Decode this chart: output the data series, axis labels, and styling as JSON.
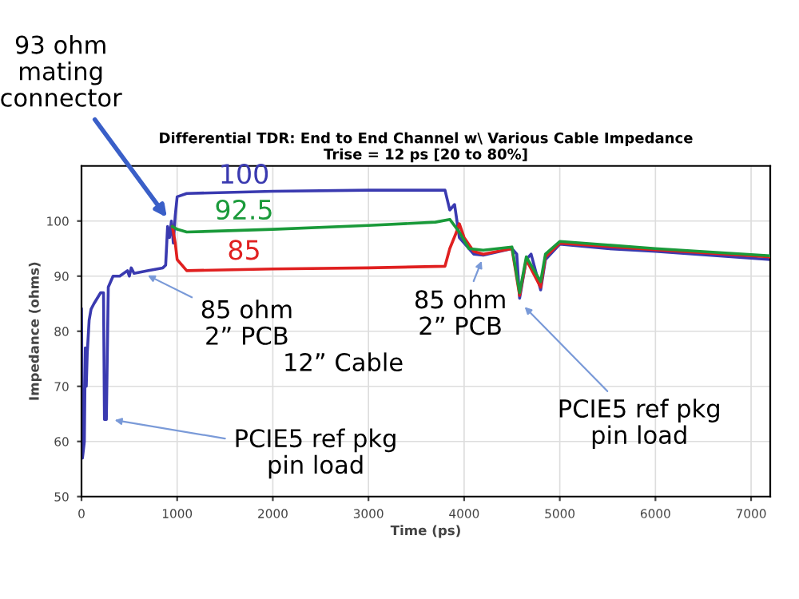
{
  "chart_data": {
    "type": "line",
    "title": "Differential TDR: End to End Channel w\\ Various Cable Impedance",
    "subtitle": "Trise = 12 ps [20 to 80%]",
    "xlabel": "Time (ps)",
    "ylabel": "Impedance (ohms)",
    "xlim": [
      0,
      7200
    ],
    "ylim": [
      50,
      110
    ],
    "xticks": [
      0,
      1000,
      2000,
      3000,
      4000,
      5000,
      6000,
      7000
    ],
    "yticks": [
      50,
      60,
      70,
      80,
      90,
      100
    ],
    "grid": true,
    "legend": false,
    "marker": "none",
    "line_style": "solid",
    "series": [
      {
        "name": "100",
        "color": "#3a3ab0",
        "x": [
          0,
          10,
          30,
          40,
          50,
          60,
          80,
          100,
          130,
          200,
          230,
          240,
          260,
          280,
          330,
          400,
          480,
          500,
          520,
          550,
          700,
          850,
          880,
          900,
          920,
          940,
          960,
          980,
          1000,
          1100,
          2000,
          3000,
          3800,
          3850,
          3900,
          3950,
          4000,
          4100,
          4200,
          4500,
          4550,
          4580,
          4650,
          4700,
          4800,
          4850,
          5000,
          5500,
          6000,
          7200
        ],
        "values": [
          84,
          57,
          60,
          77,
          70,
          76,
          82,
          84,
          85,
          87,
          87,
          64,
          64,
          88,
          90,
          90,
          91,
          90,
          91.5,
          90.5,
          91,
          91.5,
          92,
          99,
          97,
          100,
          96,
          101,
          104.4,
          105,
          105.4,
          105.6,
          105.6,
          102,
          103,
          97,
          96,
          94,
          93.8,
          95,
          94,
          86,
          93,
          94,
          87.5,
          93,
          95.8,
          95,
          94.5,
          93
        ]
      },
      {
        "name": "92.5",
        "color": "#1a9a3a",
        "x": [
          950,
          1000,
          1100,
          2000,
          3000,
          3700,
          3850,
          3950,
          4050,
          4200,
          4500,
          4580,
          4650,
          4800,
          4850,
          5000,
          6000,
          7200
        ],
        "values": [
          99,
          98.5,
          98,
          98.5,
          99.2,
          99.8,
          100.3,
          98,
          95,
          94.7,
          95.3,
          87,
          93.5,
          89,
          94,
          96.3,
          95,
          93.7
        ]
      },
      {
        "name": "85",
        "color": "#e02020",
        "x": [
          950,
          980,
          1000,
          1100,
          2000,
          3000,
          3800,
          3850,
          3920,
          3950,
          4000,
          4100,
          4200,
          4500,
          4580,
          4650,
          4800,
          4850,
          5000,
          6000,
          7200
        ],
        "values": [
          99,
          96,
          93,
          91,
          91.3,
          91.5,
          91.8,
          95,
          98,
          99.5,
          97,
          94.5,
          94,
          95,
          86.5,
          93,
          88,
          93.5,
          96,
          94.8,
          93.5
        ]
      }
    ],
    "annotations": [
      {
        "text": "93 ohm\nmating\nconnector",
        "x": 920,
        "y": 100
      },
      {
        "text": "85 ohm\n2” PCB",
        "x": 650,
        "y": 90.5
      },
      "12” Cable",
      {
        "text": "85 ohm\n2” PCB",
        "x": 4200,
        "y": 93.5
      },
      {
        "text": "PCIE5 ref pkg\npin load",
        "x": 4600,
        "y": 85
      },
      {
        "text": "PCIE5 ref pkg\npin load",
        "x": 300,
        "y": 64
      }
    ]
  }
}
